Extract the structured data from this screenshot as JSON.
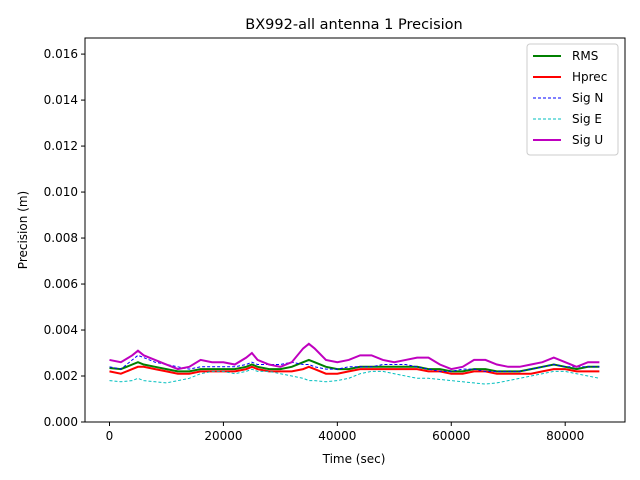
{
  "chart_data": {
    "type": "line",
    "title": "BX992-all antenna 1 Precision",
    "xlabel": "Time (sec)",
    "ylabel": "Precision (m)",
    "xlim": [
      -4300,
      90500
    ],
    "ylim": [
      0,
      0.0167
    ],
    "xticks": [
      0,
      20000,
      40000,
      60000,
      80000
    ],
    "xtick_labels": [
      "0",
      "20000",
      "40000",
      "60000",
      "80000"
    ],
    "yticks": [
      0,
      0.002,
      0.004,
      0.006,
      0.008,
      0.01,
      0.012,
      0.014,
      0.016
    ],
    "ytick_labels": [
      "0.000",
      "0.002",
      "0.004",
      "0.006",
      "0.008",
      "0.010",
      "0.012",
      "0.014",
      "0.016"
    ],
    "grid": false,
    "legend_position": "top-right",
    "x": [
      0,
      2000,
      4000,
      5000,
      6000,
      8000,
      10000,
      12000,
      14000,
      16000,
      18000,
      20000,
      22000,
      24000,
      25000,
      26000,
      28000,
      30000,
      32000,
      34000,
      35000,
      36000,
      38000,
      40000,
      42000,
      44000,
      46000,
      48000,
      50000,
      52000,
      54000,
      56000,
      58000,
      60000,
      62000,
      64000,
      66000,
      68000,
      70000,
      72000,
      74000,
      76000,
      78000,
      80000,
      82000,
      84000,
      86000
    ],
    "series": [
      {
        "name": "RMS",
        "color": "#008000",
        "style": "solid",
        "values": [
          0.00235,
          0.0023,
          0.0025,
          0.0026,
          0.0025,
          0.0024,
          0.0023,
          0.0022,
          0.0022,
          0.0023,
          0.0023,
          0.0023,
          0.0023,
          0.0024,
          0.0025,
          0.0024,
          0.0023,
          0.0023,
          0.0024,
          0.0026,
          0.0027,
          0.0026,
          0.0024,
          0.0023,
          0.0023,
          0.0024,
          0.0024,
          0.0024,
          0.0024,
          0.0024,
          0.0024,
          0.0023,
          0.0023,
          0.0022,
          0.0022,
          0.0023,
          0.0023,
          0.0022,
          0.0022,
          0.0022,
          0.0023,
          0.0024,
          0.0025,
          0.0024,
          0.0023,
          0.0024,
          0.0024
        ]
      },
      {
        "name": "Hprec",
        "color": "#ff0000",
        "style": "solid",
        "values": [
          0.0022,
          0.0021,
          0.0023,
          0.0024,
          0.0024,
          0.0023,
          0.0022,
          0.0021,
          0.0021,
          0.0022,
          0.0022,
          0.0022,
          0.0022,
          0.0023,
          0.0024,
          0.0023,
          0.0022,
          0.0022,
          0.0022,
          0.0023,
          0.0024,
          0.0023,
          0.0021,
          0.0021,
          0.0022,
          0.0023,
          0.0023,
          0.0023,
          0.0023,
          0.0023,
          0.0023,
          0.0022,
          0.0022,
          0.0021,
          0.0021,
          0.0022,
          0.0022,
          0.0021,
          0.0021,
          0.0021,
          0.0021,
          0.0022,
          0.0023,
          0.0023,
          0.0022,
          0.0022,
          0.0022
        ]
      },
      {
        "name": "Sig N",
        "color": "#0000ff",
        "style": "dashed",
        "values": [
          0.0024,
          0.0023,
          0.0027,
          0.0029,
          0.0028,
          0.0026,
          0.0025,
          0.0024,
          0.0023,
          0.0024,
          0.0024,
          0.0024,
          0.0024,
          0.0025,
          0.0026,
          0.0025,
          0.0025,
          0.0025,
          0.0026,
          0.0025,
          0.0025,
          0.0024,
          0.0023,
          0.0023,
          0.0024,
          0.0024,
          0.0024,
          0.0025,
          0.0025,
          0.0025,
          0.0024,
          0.0023,
          0.0022,
          0.0022,
          0.0023,
          0.0023,
          0.0022,
          0.0022,
          0.0022,
          0.0022,
          0.0023,
          0.0024,
          0.0025,
          0.0024,
          0.0024,
          0.0024,
          0.0024
        ]
      },
      {
        "name": "Sig E",
        "color": "#00bfbf",
        "style": "dashed",
        "values": [
          0.0018,
          0.00175,
          0.0018,
          0.0019,
          0.0018,
          0.00175,
          0.0017,
          0.0018,
          0.0019,
          0.0021,
          0.0022,
          0.0022,
          0.0021,
          0.0022,
          0.0023,
          0.0022,
          0.0022,
          0.0021,
          0.002,
          0.0019,
          0.0018,
          0.0018,
          0.00175,
          0.0018,
          0.0019,
          0.0021,
          0.0022,
          0.0022,
          0.0021,
          0.002,
          0.0019,
          0.0019,
          0.00185,
          0.0018,
          0.00175,
          0.0017,
          0.00165,
          0.0017,
          0.0018,
          0.0019,
          0.002,
          0.0021,
          0.0022,
          0.0022,
          0.0021,
          0.002,
          0.0019
        ]
      },
      {
        "name": "Sig U",
        "color": "#bf00bf",
        "style": "solid",
        "values": [
          0.0027,
          0.0026,
          0.0029,
          0.0031,
          0.0029,
          0.0027,
          0.0025,
          0.0023,
          0.0024,
          0.0027,
          0.0026,
          0.0026,
          0.0025,
          0.0028,
          0.003,
          0.0027,
          0.0025,
          0.0024,
          0.0026,
          0.0032,
          0.0034,
          0.0032,
          0.0027,
          0.0026,
          0.0027,
          0.0029,
          0.0029,
          0.0027,
          0.0026,
          0.0027,
          0.0028,
          0.0028,
          0.0025,
          0.0023,
          0.0024,
          0.0027,
          0.0027,
          0.0025,
          0.0024,
          0.0024,
          0.0025,
          0.0026,
          0.0028,
          0.0026,
          0.0024,
          0.0026,
          0.0026
        ]
      }
    ]
  }
}
